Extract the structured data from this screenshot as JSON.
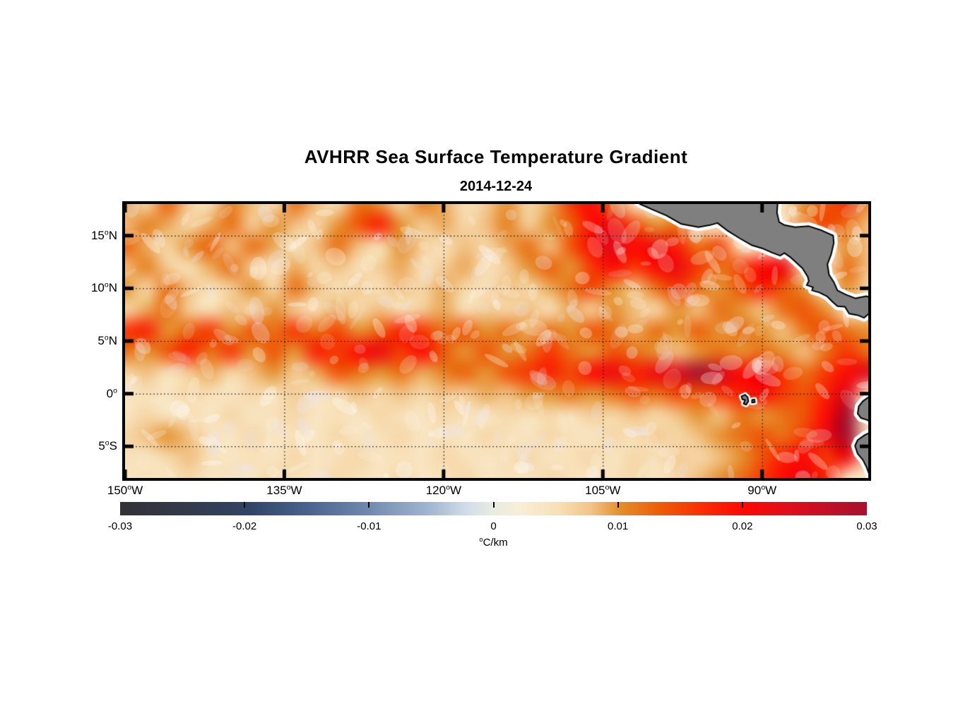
{
  "page": {
    "background": "#ffffff"
  },
  "chart_data": {
    "type": "heatmap",
    "title": "AVHRR Sea Surface Temperature Gradient",
    "subtitle": "2014-12-24",
    "degree_symbol": "o",
    "x_axis": {
      "direction": "longitude",
      "range_deg_west": [
        150,
        80
      ],
      "ticks_deg_west": [
        150,
        135,
        120,
        105,
        90
      ],
      "tick_labels": [
        {
          "num": "150",
          "dir": "W"
        },
        {
          "num": "135",
          "dir": "W"
        },
        {
          "num": "120",
          "dir": "W"
        },
        {
          "num": "105",
          "dir": "W"
        },
        {
          "num": "90",
          "dir": "W"
        }
      ],
      "gridlines_deg_west": [
        135,
        120,
        105,
        90
      ]
    },
    "y_axis": {
      "direction": "latitude",
      "range_deg_north": [
        18,
        -8
      ],
      "ticks_deg_north": [
        15,
        10,
        5,
        0,
        -5
      ],
      "tick_labels": [
        {
          "num": "15",
          "dir": "N"
        },
        {
          "num": "10",
          "dir": "N"
        },
        {
          "num": "5",
          "dir": "N"
        },
        {
          "num": "0",
          "dir": ""
        },
        {
          "num": "5",
          "dir": "S"
        }
      ],
      "gridlines_deg_north": [
        15,
        10,
        5,
        0,
        -5
      ]
    },
    "colorbar": {
      "min": -0.03,
      "max": 0.03,
      "tick_values": [
        -0.03,
        -0.02,
        -0.01,
        0,
        0.01,
        0.02,
        0.03
      ],
      "tick_labels": [
        "-0.03",
        "-0.02",
        "-0.01",
        "0",
        "0.01",
        "0.02",
        "0.03"
      ],
      "unit_full": "°C/km",
      "unit_sup": "o",
      "unit_text": "C/km",
      "stops": [
        [
          0.0,
          "#323237"
        ],
        [
          0.085,
          "#34394a"
        ],
        [
          0.17,
          "#314364"
        ],
        [
          0.25,
          "#48628c"
        ],
        [
          0.33,
          "#6e88ae"
        ],
        [
          0.415,
          "#a2b6d1"
        ],
        [
          0.465,
          "#d2dde9"
        ],
        [
          0.5,
          "#e9ece1"
        ],
        [
          0.535,
          "#f8eed6"
        ],
        [
          0.585,
          "#f8e0b8"
        ],
        [
          0.63,
          "#f2c489"
        ],
        [
          0.67,
          "#e48d2b"
        ],
        [
          0.72,
          "#ec5f09"
        ],
        [
          0.78,
          "#f92d04"
        ],
        [
          0.835,
          "#fd0804"
        ],
        [
          0.9,
          "#dd0e1c"
        ],
        [
          1.0,
          "#a61230"
        ]
      ]
    },
    "grid": {
      "units": "degC/km",
      "lons_deg_west": [
        150,
        148,
        146,
        144,
        142,
        140,
        138,
        136,
        134,
        132,
        130,
        128,
        126,
        124,
        122,
        120,
        118,
        116,
        114,
        112,
        110,
        108,
        106,
        104,
        102,
        100,
        98,
        96,
        94,
        92,
        90,
        88,
        86,
        84,
        82,
        80
      ],
      "lats_deg_north": [
        18,
        16,
        14,
        12,
        10,
        8,
        6,
        4,
        2,
        0,
        -2,
        -4,
        -6,
        -8
      ],
      "values": [
        [
          0.01,
          0.006,
          0.013,
          0.007,
          0.005,
          0.011,
          0.008,
          0.005,
          0.012,
          0.008,
          0.005,
          0.012,
          0.01,
          0.006,
          0.011,
          0.009,
          0.005,
          0.007,
          0.01,
          0.006,
          0.009,
          0.016,
          0.02,
          0.012,
          null,
          null,
          null,
          null,
          null,
          null,
          null,
          null,
          0.01,
          0.014,
          0.016,
          0.01
        ],
        [
          0.008,
          0.011,
          0.009,
          0.006,
          0.009,
          0.012,
          0.007,
          0.01,
          0.008,
          0.006,
          0.01,
          0.014,
          0.018,
          0.01,
          0.007,
          0.009,
          0.006,
          0.008,
          0.011,
          0.007,
          0.01,
          0.013,
          0.02,
          0.022,
          0.015,
          0.01,
          0.012,
          null,
          null,
          null,
          null,
          null,
          0.012,
          0.015,
          0.012,
          0.008
        ],
        [
          0.013,
          0.009,
          0.006,
          0.01,
          0.013,
          0.008,
          0.012,
          0.009,
          0.005,
          0.008,
          0.012,
          0.008,
          0.005,
          0.01,
          0.007,
          0.005,
          0.008,
          0.006,
          0.009,
          0.012,
          0.008,
          0.014,
          0.02,
          0.024,
          0.02,
          0.022,
          0.018,
          0.012,
          0.015,
          null,
          null,
          null,
          null,
          null,
          0.01,
          0.008
        ],
        [
          0.008,
          0.011,
          0.007,
          0.005,
          0.009,
          0.012,
          0.007,
          0.005,
          0.009,
          0.006,
          0.008,
          0.005,
          0.007,
          0.009,
          0.005,
          0.007,
          0.009,
          0.005,
          0.007,
          0.01,
          0.013,
          0.01,
          0.016,
          0.02,
          0.016,
          0.02,
          0.022,
          0.016,
          0.012,
          0.015,
          0.02,
          0.022,
          null,
          null,
          0.012,
          0.008
        ],
        [
          0.01,
          0.006,
          0.012,
          0.008,
          0.005,
          0.007,
          0.01,
          0.006,
          0.012,
          0.008,
          0.005,
          0.007,
          0.005,
          0.008,
          0.006,
          0.009,
          0.006,
          0.005,
          0.008,
          0.006,
          0.009,
          0.012,
          0.015,
          0.01,
          0.008,
          0.012,
          0.016,
          0.012,
          0.01,
          0.014,
          0.018,
          0.014,
          0.01,
          null,
          0.01,
          0.006
        ],
        [
          0.006,
          0.009,
          0.012,
          0.007,
          0.005,
          0.008,
          0.006,
          0.01,
          0.007,
          0.005,
          0.009,
          0.006,
          0.008,
          0.005,
          0.007,
          0.009,
          0.005,
          0.007,
          0.006,
          0.008,
          0.005,
          0.009,
          0.007,
          0.01,
          0.008,
          0.006,
          0.01,
          0.008,
          0.012,
          0.01,
          0.008,
          0.012,
          0.014,
          0.01,
          null,
          null
        ],
        [
          0.016,
          0.018,
          0.01,
          0.013,
          0.016,
          0.01,
          0.014,
          0.012,
          0.016,
          0.012,
          0.015,
          0.01,
          0.013,
          0.018,
          0.016,
          0.012,
          0.014,
          0.01,
          0.012,
          0.009,
          0.012,
          0.01,
          0.014,
          0.012,
          0.009,
          0.012,
          0.01,
          0.013,
          0.01,
          0.012,
          0.01,
          0.008,
          0.012,
          0.015,
          0.012,
          0.01
        ],
        [
          0.012,
          0.01,
          0.014,
          0.018,
          0.012,
          0.016,
          0.01,
          0.014,
          0.01,
          0.018,
          0.016,
          0.02,
          0.022,
          0.016,
          0.02,
          0.014,
          0.01,
          0.014,
          0.01,
          0.012,
          0.016,
          0.012,
          0.01,
          0.014,
          0.012,
          0.01,
          0.008,
          0.01,
          0.012,
          0.01,
          0.012,
          0.01,
          0.008,
          0.012,
          0.016,
          0.012
        ],
        [
          0.006,
          0.008,
          0.005,
          0.007,
          0.009,
          0.006,
          0.008,
          0.01,
          0.007,
          0.009,
          0.014,
          0.012,
          0.01,
          0.012,
          0.009,
          0.011,
          0.013,
          0.01,
          0.014,
          0.016,
          0.018,
          0.015,
          0.02,
          0.022,
          0.018,
          0.022,
          0.024,
          0.03,
          0.026,
          0.02,
          0.022,
          0.016,
          0.012,
          0.016,
          0.02,
          0.024
        ],
        [
          0.004,
          0.005,
          0.004,
          0.006,
          0.005,
          0.004,
          0.006,
          0.005,
          0.007,
          0.005,
          0.006,
          0.008,
          0.006,
          0.008,
          0.006,
          0.008,
          0.007,
          0.009,
          0.008,
          0.01,
          0.01,
          0.012,
          0.01,
          0.012,
          0.014,
          0.012,
          0.015,
          0.014,
          0.016,
          0.018,
          0.02,
          0.016,
          0.014,
          0.018,
          0.024,
          null
        ],
        [
          0.004,
          0.006,
          0.004,
          0.005,
          0.004,
          0.006,
          0.004,
          0.005,
          0.006,
          0.004,
          0.005,
          0.004,
          0.006,
          0.005,
          0.004,
          0.006,
          0.005,
          0.004,
          0.006,
          0.005,
          0.006,
          0.005,
          0.007,
          0.006,
          0.008,
          0.006,
          0.008,
          0.01,
          0.008,
          0.012,
          0.01,
          0.012,
          0.014,
          0.02,
          0.03,
          null
        ],
        [
          0.006,
          0.008,
          0.01,
          0.008,
          0.005,
          0.004,
          0.006,
          0.004,
          0.005,
          0.004,
          0.006,
          0.004,
          0.005,
          0.006,
          0.004,
          0.005,
          0.004,
          0.006,
          0.005,
          0.004,
          0.006,
          0.005,
          0.004,
          0.006,
          0.005,
          0.007,
          0.006,
          0.008,
          0.01,
          0.012,
          0.014,
          0.012,
          0.016,
          0.022,
          0.03,
          null
        ],
        [
          0.005,
          0.004,
          0.006,
          0.008,
          0.005,
          0.004,
          0.005,
          0.004,
          0.006,
          0.004,
          0.005,
          0.006,
          0.004,
          0.005,
          0.004,
          0.006,
          0.005,
          0.004,
          0.005,
          0.006,
          0.004,
          0.005,
          0.006,
          0.004,
          0.006,
          0.005,
          0.007,
          0.006,
          0.008,
          0.01,
          0.014,
          0.018,
          0.02,
          0.016,
          0.022,
          null
        ],
        [
          0.004,
          0.005,
          0.004,
          0.006,
          0.004,
          0.005,
          0.004,
          0.006,
          0.005,
          0.004,
          0.006,
          0.005,
          0.004,
          0.006,
          0.004,
          0.005,
          0.006,
          0.004,
          0.005,
          0.004,
          0.006,
          0.005,
          0.004,
          0.005,
          0.006,
          0.004,
          0.006,
          0.008,
          0.01,
          0.012,
          0.016,
          0.02,
          0.022,
          0.018,
          null,
          null
        ]
      ]
    },
    "land": {
      "fill": "#7f7f7f",
      "coastline": "#000000",
      "coastal_mask": "#ffffff",
      "polygons": {
        "central_america": [
          [
            102.2,
            18.6
          ],
          [
            101.5,
            18.0
          ],
          [
            100.4,
            17.5
          ],
          [
            99.0,
            16.9
          ],
          [
            97.6,
            16.1
          ],
          [
            96.0,
            15.8
          ],
          [
            94.9,
            16.0
          ],
          [
            94.2,
            16.2
          ],
          [
            93.3,
            15.5
          ],
          [
            92.2,
            14.8
          ],
          [
            91.0,
            14.1
          ],
          [
            90.0,
            13.8
          ],
          [
            89.1,
            13.4
          ],
          [
            88.3,
            13.1
          ],
          [
            87.9,
            13.35
          ],
          [
            87.4,
            13.0
          ],
          [
            86.9,
            12.55
          ],
          [
            86.2,
            11.9
          ],
          [
            85.7,
            11.1
          ],
          [
            85.6,
            10.7
          ],
          [
            85.8,
            10.3
          ],
          [
            85.2,
            10.1
          ],
          [
            85.3,
            9.8
          ],
          [
            84.6,
            9.6
          ],
          [
            83.9,
            9.25
          ],
          [
            83.3,
            8.65
          ],
          [
            82.9,
            8.3
          ],
          [
            82.2,
            8.25
          ],
          [
            81.8,
            7.6
          ],
          [
            81.0,
            7.45
          ],
          [
            80.4,
            7.2
          ],
          [
            80.0,
            7.55
          ],
          [
            79.5,
            7.9
          ],
          [
            79.3,
            9.0
          ],
          [
            80.2,
            9.25
          ],
          [
            81.2,
            9.05
          ],
          [
            82.1,
            9.4
          ],
          [
            82.9,
            9.8
          ],
          [
            83.25,
            10.6
          ],
          [
            83.7,
            11.3
          ],
          [
            83.85,
            12.3
          ],
          [
            83.5,
            13.2
          ],
          [
            83.25,
            14.3
          ],
          [
            83.3,
            15.0
          ],
          [
            84.4,
            15.5
          ],
          [
            85.6,
            15.9
          ],
          [
            86.9,
            15.8
          ],
          [
            87.9,
            16.0
          ],
          [
            88.4,
            16.3
          ],
          [
            88.6,
            17.2
          ],
          [
            88.5,
            18.6
          ]
        ],
        "south_america": [
          [
            78.8,
            -0.05
          ],
          [
            79.3,
            -0.1
          ],
          [
            80.0,
            -0.35
          ],
          [
            80.5,
            -0.7
          ],
          [
            80.9,
            -1.2
          ],
          [
            81.0,
            -1.9
          ],
          [
            80.7,
            -2.3
          ],
          [
            80.1,
            -2.5
          ],
          [
            79.4,
            -2.9
          ],
          [
            79.4,
            -3.5
          ],
          [
            80.3,
            -3.9
          ],
          [
            81.0,
            -4.4
          ],
          [
            81.25,
            -4.95
          ],
          [
            81.0,
            -5.7
          ],
          [
            80.5,
            -6.3
          ],
          [
            80.15,
            -7.0
          ],
          [
            79.9,
            -7.7
          ],
          [
            79.8,
            -8.6
          ],
          [
            78.8,
            -8.8
          ]
        ],
        "galapagos": [
          [
            [
              91.95,
              -0.25
            ],
            [
              91.6,
              -0.1
            ],
            [
              91.35,
              -0.35
            ],
            [
              91.3,
              -0.75
            ],
            [
              91.5,
              -1.05
            ],
            [
              91.75,
              -0.95
            ],
            [
              91.6,
              -0.6
            ],
            [
              91.85,
              -0.55
            ]
          ],
          [
            [
              90.95,
              -0.6
            ],
            [
              90.72,
              -0.55
            ],
            [
              90.68,
              -0.82
            ],
            [
              90.95,
              -0.85
            ]
          ]
        ]
      }
    },
    "style": {
      "gridline_style": "dotted",
      "gridline_color": "#1a1a1a",
      "frame_color": "#000000",
      "background_value_color_hint": "#f8ead0"
    }
  }
}
